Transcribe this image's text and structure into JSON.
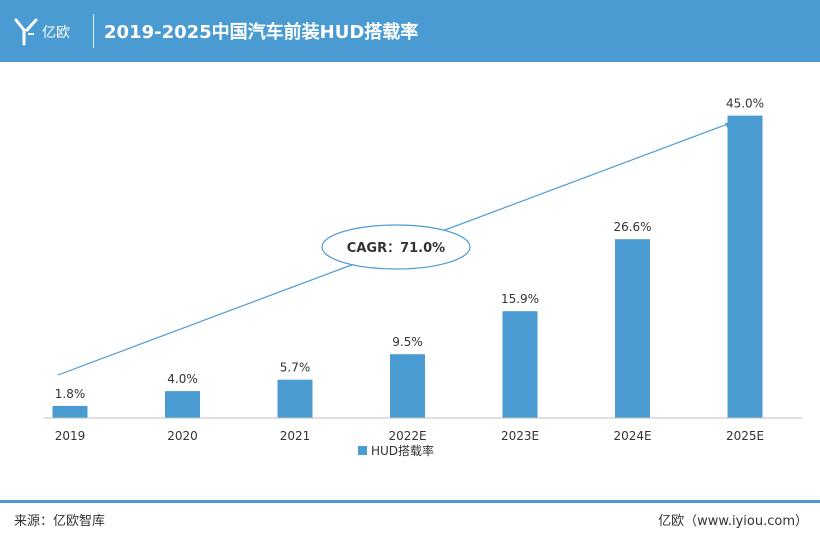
{
  "header": {
    "logo_text": "亿欧",
    "title": "2019-2025中国汽车前装HUD搭载率",
    "color": "#4a9bd1"
  },
  "chart_data": {
    "type": "bar",
    "title": "2019-2025中国汽车前装HUD搭载率",
    "categories": [
      "2019",
      "2020",
      "2021",
      "2022E",
      "2023E",
      "2024E",
      "2025E"
    ],
    "series": [
      {
        "name": "HUD搭载率",
        "values": [
          1.8,
          4.0,
          5.7,
          9.5,
          15.9,
          26.6,
          45.0
        ],
        "labels": [
          "1.8%",
          "4.0%",
          "5.7%",
          "9.5%",
          "15.9%",
          "26.6%",
          "45.0%"
        ],
        "color": "#4a9bd1"
      }
    ],
    "ylim": [
      0,
      50
    ],
    "annotation": "CAGR：71.0%",
    "legend_position": "bottom",
    "grid": false,
    "xlabel": "",
    "ylabel": ""
  },
  "footer": {
    "source": "来源：亿欧智库",
    "brand": "亿欧（www.iyiou.com）"
  }
}
